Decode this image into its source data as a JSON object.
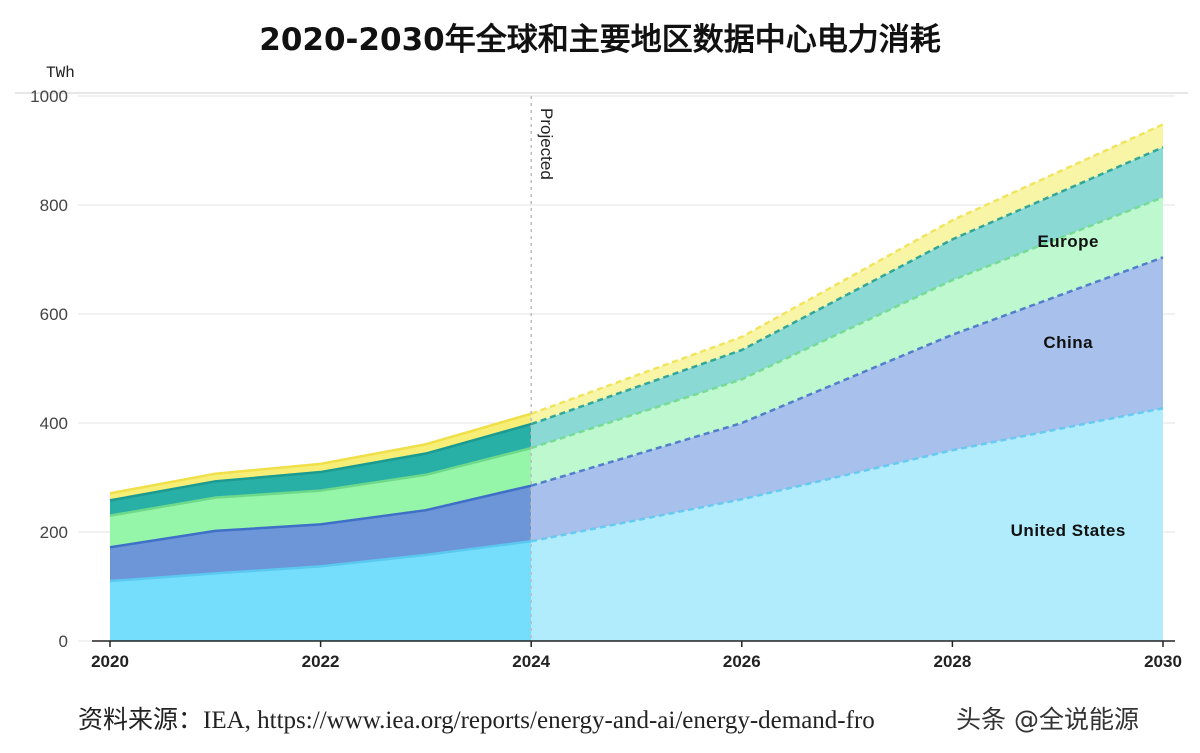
{
  "chart_data": {
    "type": "area",
    "title": "2020-2030年全球和主要地区数据中心电力消耗",
    "ylabel": "TWh",
    "xlabel": "",
    "ylim": [
      0,
      1000
    ],
    "xlim": [
      2020,
      2030
    ],
    "x_ticks": [
      "2020",
      "2022",
      "2024",
      "2026",
      "2028",
      "2030"
    ],
    "y_ticks": [
      "0",
      "200",
      "400",
      "600",
      "800",
      "1000"
    ],
    "grid": true,
    "projection_start": 2024,
    "projection_label": "Projected",
    "x": [
      2020,
      2021,
      2022,
      2023,
      2024,
      2026,
      2028,
      2030
    ],
    "stacked": true,
    "series": [
      {
        "name": "United States",
        "color": "#74defc",
        "projected_color": "#b0ecfc",
        "values": [
          110,
          124,
          137,
          158,
          183,
          260,
          350,
          427
        ]
      },
      {
        "name": "China",
        "color": "#6d96d8",
        "projected_color": "#a7c1ec",
        "values": [
          62,
          78,
          77,
          82,
          102,
          140,
          212,
          277
        ]
      },
      {
        "name": "Europe",
        "color": "#95f5a8",
        "projected_color": "#bef8cf",
        "values": [
          58,
          61,
          62,
          65,
          69,
          80,
          100,
          110
        ]
      },
      {
        "name": "",
        "color": "#29b0a6",
        "projected_color": "#8ad9d4",
        "values": [
          28,
          30,
          34,
          39,
          44,
          54,
          75,
          92
        ]
      },
      {
        "name": "",
        "color": "#f6ee77",
        "projected_color": "#f8f5a6",
        "values": [
          13,
          14,
          15,
          17,
          19,
          24,
          35,
          42
        ]
      }
    ]
  },
  "source_text": "资料来源：IEA, https://www.iea.org/reports/energy-and-ai/energy-demand-fro",
  "watermark_text": "头条 @全说能源"
}
